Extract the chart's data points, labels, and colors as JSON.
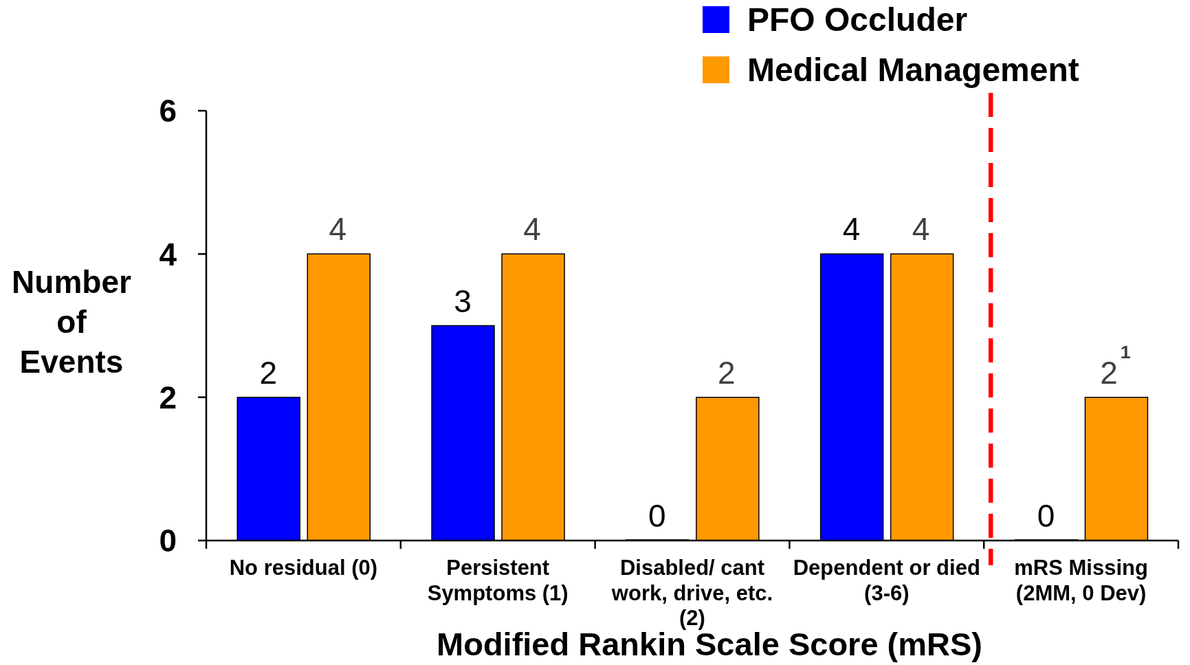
{
  "chart_data": {
    "type": "bar",
    "categories": [
      "No residual (0)",
      "Persistent\nSymptoms (1)",
      "Disabled/ cant\nwork, drive, etc.\n(2)",
      "Dependent or died\n(3-6)",
      "mRS Missing\n(2MM, 0 Dev)"
    ],
    "series": [
      {
        "name": "PFO Occluder",
        "color": "#0000ff",
        "values": [
          2,
          3,
          0,
          4,
          0
        ],
        "value_labels": [
          "2",
          "3",
          "0",
          "4",
          "0"
        ]
      },
      {
        "name": "Medical Management",
        "color": "#ff9900",
        "values": [
          4,
          4,
          2,
          4,
          2
        ],
        "value_labels": [
          "4",
          "4",
          "2",
          "4",
          "2$^{1}$"
        ]
      }
    ],
    "xlabel": "Modified Rankin Scale Score (mRS)",
    "ylabel": "Number of Events",
    "ylim": [
      0,
      6
    ],
    "yticks": [
      0,
      2,
      4,
      6
    ],
    "legend": "top right"
  }
}
